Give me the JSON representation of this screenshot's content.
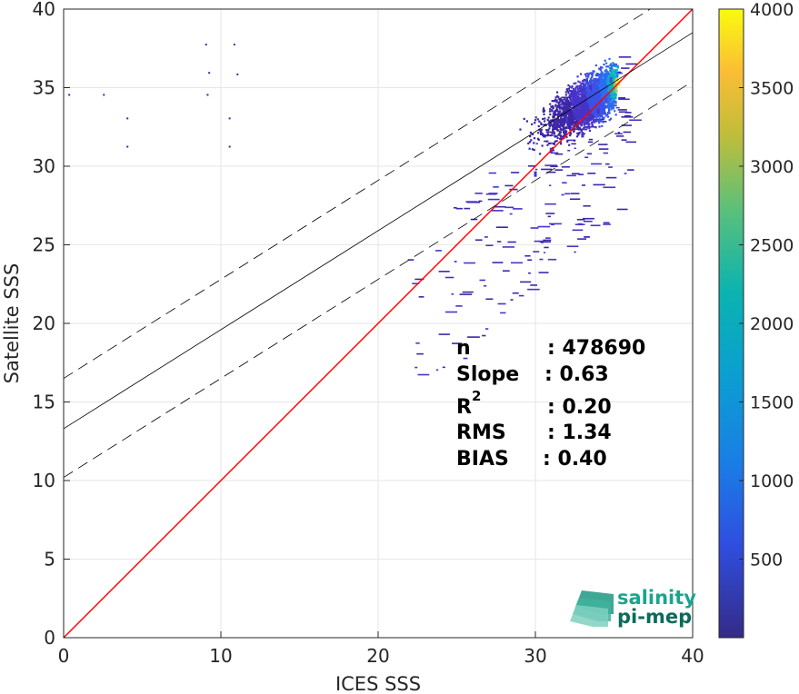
{
  "chart_data": {
    "type": "heatmap",
    "title": "",
    "xlabel": "ICES SSS",
    "ylabel": "Satellite SSS",
    "xlim": [
      0,
      40
    ],
    "ylim": [
      0,
      40
    ],
    "x_ticks": [
      "0",
      "10",
      "20",
      "30",
      "40"
    ],
    "y_ticks": [
      "0",
      "5",
      "10",
      "15",
      "20",
      "25",
      "30",
      "35",
      "40"
    ],
    "grid": true,
    "colormap": "parula",
    "colorbar": {
      "range": [
        0,
        4000
      ],
      "ticks": [
        "500",
        "1000",
        "1500",
        "2000",
        "2500",
        "3000",
        "3500",
        "4000"
      ]
    },
    "density_bins": [
      {
        "x": 35.3,
        "y": 35.3,
        "count": 4000
      },
      {
        "x": 35.0,
        "y": 34.8,
        "count": 3000
      },
      {
        "x": 35.2,
        "y": 35.8,
        "count": 2200
      },
      {
        "x": 34.8,
        "y": 35.5,
        "count": 1200
      },
      {
        "x": 34.5,
        "y": 34.2,
        "count": 900
      },
      {
        "x": 34.0,
        "y": 33.5,
        "count": 600
      },
      {
        "x": 33.5,
        "y": 35.0,
        "count": 500
      },
      {
        "x": 33.0,
        "y": 32.0,
        "count": 400
      },
      {
        "x": 32.0,
        "y": 33.0,
        "count": 350
      },
      {
        "x": 31.0,
        "y": 31.0,
        "count": 300
      },
      {
        "x": 30.0,
        "y": 29.5,
        "count": 250
      }
    ],
    "lines": [
      {
        "label": "1:1",
        "slope": 1.0,
        "intercept": 0.0,
        "color": "#ff0000",
        "style": "solid"
      },
      {
        "label": "regression",
        "slope": 0.63,
        "intercept": 13.3,
        "color": "#000000",
        "style": "solid"
      },
      {
        "label": "upper bound",
        "slope": 0.63,
        "intercept": 16.5,
        "color": "#000000",
        "style": "dashed"
      },
      {
        "label": "lower bound",
        "slope": 0.63,
        "intercept": 10.2,
        "color": "#000000",
        "style": "dashed"
      }
    ]
  },
  "stats": {
    "n_label": "n",
    "n_value": ": 478690",
    "slope_label": "Slope",
    "slope_value": ": 0.63",
    "r2_label": "R",
    "r2_sup": "2",
    "r2_value": ": 0.20",
    "rms_label": "RMS",
    "rms_value": ": 1.34",
    "bias_label": "BIAS",
    "bias_value": ": 0.40"
  },
  "logo": {
    "line1": "salinity",
    "line2": "pi-mep",
    "color1": "#1aa58e",
    "color2": "#0e6a5a"
  }
}
